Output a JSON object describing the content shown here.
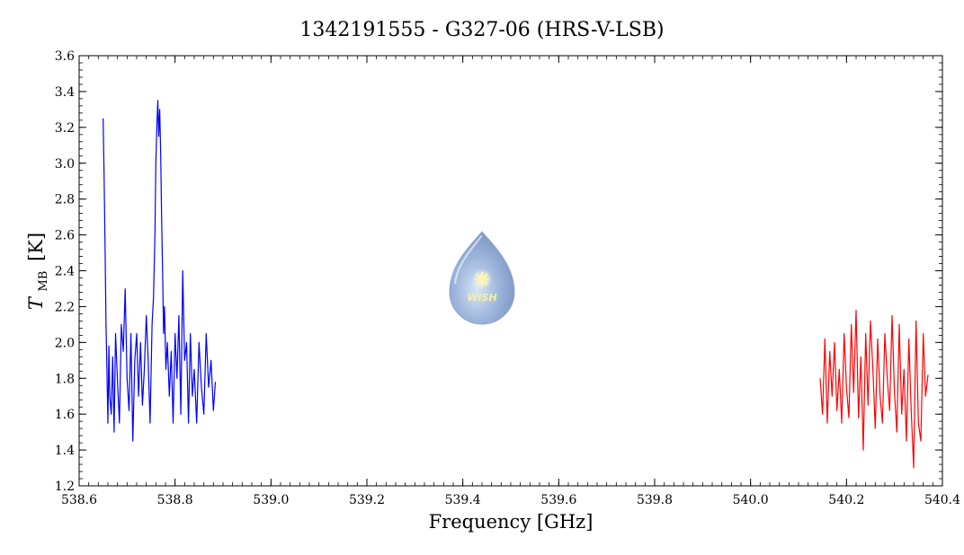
{
  "chart_data": {
    "type": "line",
    "title": "1342191555 - G327-06 (HRS-V-LSB)",
    "xlabel": "Frequency [GHz]",
    "ylabel_main": "T",
    "ylabel_sub": "MB",
    "ylabel_unit": "[K]",
    "xlim": [
      538.6,
      540.4
    ],
    "ylim": [
      1.2,
      3.6
    ],
    "x_ticks": [
      "538.6",
      "538.8",
      "539.0",
      "539.2",
      "539.4",
      "539.6",
      "539.8",
      "540.0",
      "540.2",
      "540.4"
    ],
    "y_ticks": [
      "1.2",
      "1.4",
      "1.6",
      "1.8",
      "2.0",
      "2.2",
      "2.4",
      "2.6",
      "2.8",
      "3.0",
      "3.2",
      "3.4",
      "3.6"
    ],
    "grid": false,
    "logo_text": "WISH",
    "series": [
      {
        "color": "#0000ff",
        "x": [
          538.65,
          538.652,
          538.654,
          538.656,
          538.658,
          538.66,
          538.662,
          538.664,
          538.667,
          538.67,
          538.673,
          538.676,
          538.68,
          538.684,
          538.688,
          538.692,
          538.696,
          538.7,
          538.704,
          538.708,
          538.712,
          538.716,
          538.72,
          538.724,
          538.728,
          538.732,
          538.736,
          538.74,
          538.744,
          538.748,
          538.752,
          538.755,
          538.758,
          538.76,
          538.762,
          538.764,
          538.766,
          538.768,
          538.77,
          538.772,
          538.774,
          538.776,
          538.778,
          538.781,
          538.784,
          538.788,
          538.792,
          538.796,
          538.8,
          538.804,
          538.808,
          538.812,
          538.816,
          538.82,
          538.824,
          538.828,
          538.832,
          538.836,
          538.84,
          538.845,
          538.85,
          538.855,
          538.86,
          538.865,
          538.87,
          538.875,
          538.88,
          538.884
        ],
        "y": [
          3.25,
          2.95,
          2.55,
          2.1,
          1.85,
          1.55,
          1.98,
          1.7,
          1.6,
          1.92,
          1.5,
          2.05,
          1.78,
          1.55,
          2.1,
          1.95,
          2.3,
          1.8,
          1.62,
          2.05,
          1.45,
          1.9,
          2.05,
          1.7,
          2.0,
          1.65,
          1.85,
          2.15,
          1.9,
          1.55,
          2.1,
          2.25,
          2.6,
          3.0,
          3.2,
          3.35,
          3.15,
          3.3,
          3.05,
          2.7,
          2.4,
          2.05,
          2.2,
          1.85,
          2.0,
          1.7,
          1.95,
          1.55,
          2.05,
          1.8,
          2.15,
          1.6,
          2.4,
          1.9,
          2.0,
          1.55,
          2.05,
          1.7,
          1.85,
          1.55,
          2.0,
          1.75,
          1.6,
          2.05,
          1.75,
          1.9,
          1.62,
          1.78
        ]
      },
      {
        "color": "#ff0000",
        "x": [
          540.145,
          540.15,
          540.155,
          540.16,
          540.165,
          540.17,
          540.175,
          540.18,
          540.185,
          540.19,
          540.195,
          540.2,
          540.205,
          540.21,
          540.215,
          540.22,
          540.225,
          540.23,
          540.235,
          540.24,
          540.245,
          540.25,
          540.255,
          540.26,
          540.265,
          540.27,
          540.275,
          540.28,
          540.285,
          540.29,
          540.295,
          540.3,
          540.305,
          540.31,
          540.315,
          540.32,
          540.325,
          540.33,
          540.335,
          540.34,
          540.345,
          540.35,
          540.355,
          540.36,
          540.365,
          540.37
        ],
        "y": [
          1.8,
          1.6,
          2.02,
          1.55,
          1.95,
          1.7,
          2.0,
          1.62,
          1.85,
          1.55,
          2.05,
          1.75,
          1.58,
          2.1,
          1.72,
          2.18,
          1.58,
          1.92,
          1.4,
          2.05,
          1.65,
          2.12,
          1.85,
          1.52,
          2.02,
          1.7,
          1.55,
          2.05,
          1.8,
          1.62,
          2.15,
          1.72,
          1.5,
          2.1,
          1.6,
          1.85,
          1.45,
          2.02,
          1.62,
          1.3,
          2.12,
          1.55,
          1.45,
          2.05,
          1.7,
          1.82
        ]
      }
    ]
  }
}
